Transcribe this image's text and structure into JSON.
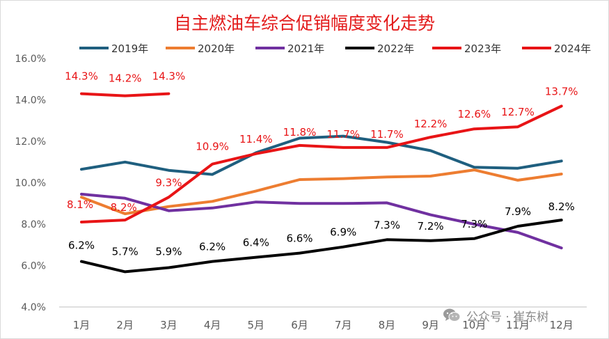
{
  "chart_data": {
    "type": "line",
    "title": "自主燃油车综合促销幅度变化走势",
    "categories": [
      "1月",
      "2月",
      "3月",
      "4月",
      "5月",
      "6月",
      "7月",
      "8月",
      "9月",
      "10月",
      "11月",
      "12月"
    ],
    "y_ticks": [
      "4.0%",
      "6.0%",
      "8.0%",
      "10.0%",
      "12.0%",
      "14.0%",
      "16.0%"
    ],
    "ylim": [
      4,
      16
    ],
    "series": [
      {
        "name": "2019年",
        "color": "#1f5f7f",
        "values": [
          10.65,
          11.0,
          10.6,
          10.4,
          11.45,
          12.15,
          12.25,
          11.95,
          11.55,
          10.75,
          10.7,
          11.05
        ]
      },
      {
        "name": "2020年",
        "color": "#ed7d31",
        "values": [
          9.3,
          8.5,
          8.85,
          9.1,
          9.6,
          10.15,
          10.2,
          10.28,
          10.32,
          10.62,
          10.12,
          10.42
        ]
      },
      {
        "name": "2021年",
        "color": "#7030a0",
        "values": [
          9.45,
          9.25,
          8.65,
          8.78,
          9.07,
          9.0,
          9.0,
          9.03,
          8.45,
          8.0,
          7.6,
          6.85
        ]
      },
      {
        "name": "2022年",
        "color": "#000000",
        "values": [
          6.2,
          5.7,
          5.9,
          6.2,
          6.4,
          6.6,
          6.9,
          7.25,
          7.2,
          7.3,
          7.9,
          8.2
        ]
      },
      {
        "name": "2023年",
        "color": "#e81416",
        "values": [
          8.1,
          8.2,
          9.3,
          10.9,
          11.4,
          11.8,
          11.7,
          11.7,
          12.2,
          12.6,
          12.7,
          13.7
        ]
      },
      {
        "name": "2024年",
        "color": "#e81416",
        "values": [
          14.3,
          14.2,
          14.3,
          null,
          null,
          null,
          null,
          null,
          null,
          null,
          null,
          null
        ]
      }
    ],
    "data_labels": [
      {
        "series": "2022年",
        "labels": [
          "6.2%",
          "5.7%",
          "5.9%",
          "6.2%",
          "6.4%",
          "6.6%",
          "6.9%",
          "7.3%",
          "7.2%",
          "7.3%",
          "7.9%",
          "8.2%"
        ]
      },
      {
        "series": "2023年",
        "labels": [
          "8.1%",
          "8.2%",
          "9.3%",
          "10.9%",
          "11.4%",
          "11.8%",
          "11.7%",
          "11.7%",
          "12.2%",
          "12.6%",
          "12.7%",
          "13.7%"
        ]
      },
      {
        "series": "2024年",
        "labels": [
          "14.3%",
          "14.2%",
          "14.3%"
        ]
      }
    ],
    "legend_position": "top",
    "grid": false
  },
  "watermark": "公众号 · 崔东树",
  "icons": {
    "watermark_icon": "wechat-icon"
  }
}
